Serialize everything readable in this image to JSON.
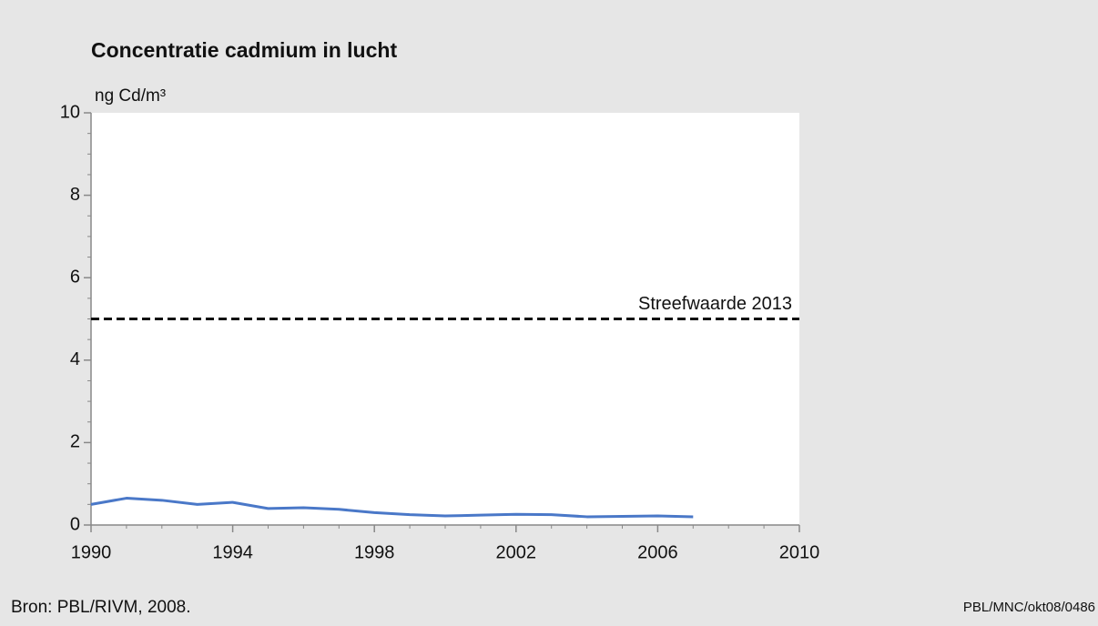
{
  "chart_data": {
    "type": "line",
    "title": "Concentratie cadmium in lucht",
    "y_label": "ng Cd/m³",
    "x": [
      1990,
      1991,
      1992,
      1993,
      1994,
      1995,
      1996,
      1997,
      1998,
      1999,
      2000,
      2001,
      2002,
      2003,
      2004,
      2005,
      2006,
      2007
    ],
    "series": [
      {
        "name": "Cadmium",
        "color": "#4a78c8",
        "values": [
          0.5,
          0.65,
          0.6,
          0.5,
          0.55,
          0.4,
          0.42,
          0.38,
          0.3,
          0.25,
          0.22,
          0.24,
          0.26,
          0.25,
          0.2,
          0.21,
          0.22,
          0.2
        ]
      }
    ],
    "reference_lines": [
      {
        "value": 5,
        "label": "Streefwaarde 2013"
      }
    ],
    "xlim": [
      1990,
      2010
    ],
    "xticks": [
      1990,
      1994,
      1998,
      2002,
      2006,
      2010
    ],
    "ylim": [
      0,
      10
    ],
    "yticks": [
      0,
      2,
      4,
      6,
      8,
      10
    ],
    "source": "Bron: PBL/RIVM, 2008.",
    "credit": "PBL/MNC/okt08/0486"
  }
}
